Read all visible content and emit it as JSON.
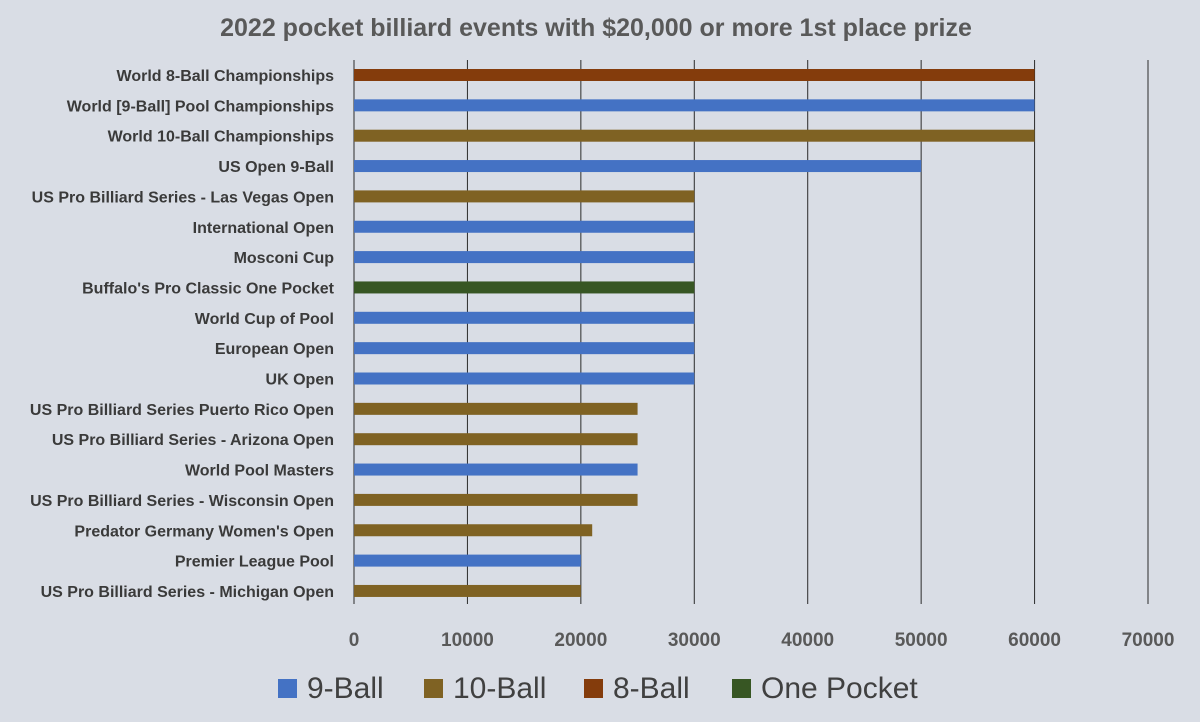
{
  "chart_data": {
    "type": "bar",
    "orientation": "horizontal",
    "title": "2022 pocket billiard events with $20,000 or more 1st place prize",
    "xlabel": "",
    "ylabel": "",
    "xlim": [
      0,
      70000
    ],
    "x_ticks": [
      "0",
      "10000",
      "20000",
      "30000",
      "40000",
      "50000",
      "60000",
      "70000"
    ],
    "grid": "vertical major gridlines",
    "legend_position": "bottom",
    "series_colors": {
      "9-Ball": "#4472c4",
      "10-Ball": "#7f6223",
      "8-Ball": "#843c0c",
      "One Pocket": "#375623"
    },
    "legend": [
      "9-Ball",
      "10-Ball",
      "8-Ball",
      "One Pocket"
    ],
    "categories": [
      "World 8-Ball Championships",
      "World [9-Ball] Pool Championships",
      "World 10-Ball Championships",
      "US Open 9-Ball",
      "US Pro Billiard Series - Las Vegas Open",
      "International Open",
      "Mosconi Cup",
      "Buffalo's Pro Classic One Pocket",
      "World Cup of Pool",
      "European Open",
      "UK Open",
      "US Pro Billiard Series Puerto Rico Open",
      "US Pro Billiard Series - Arizona Open",
      "World Pool Masters",
      "US Pro Billiard Series - Wisconsin Open",
      "Predator Germany Women's Open",
      "Premier League Pool",
      "US Pro Billiard Series - Michigan Open"
    ],
    "values": [
      60000,
      60000,
      60000,
      50000,
      30000,
      30000,
      30000,
      30000,
      30000,
      30000,
      30000,
      25000,
      25000,
      25000,
      25000,
      21000,
      20000,
      20000
    ],
    "series_of_bar": [
      "8-Ball",
      "9-Ball",
      "10-Ball",
      "9-Ball",
      "10-Ball",
      "9-Ball",
      "9-Ball",
      "One Pocket",
      "9-Ball",
      "9-Ball",
      "9-Ball",
      "10-Ball",
      "10-Ball",
      "9-Ball",
      "10-Ball",
      "10-Ball",
      "9-Ball",
      "10-Ball"
    ]
  }
}
